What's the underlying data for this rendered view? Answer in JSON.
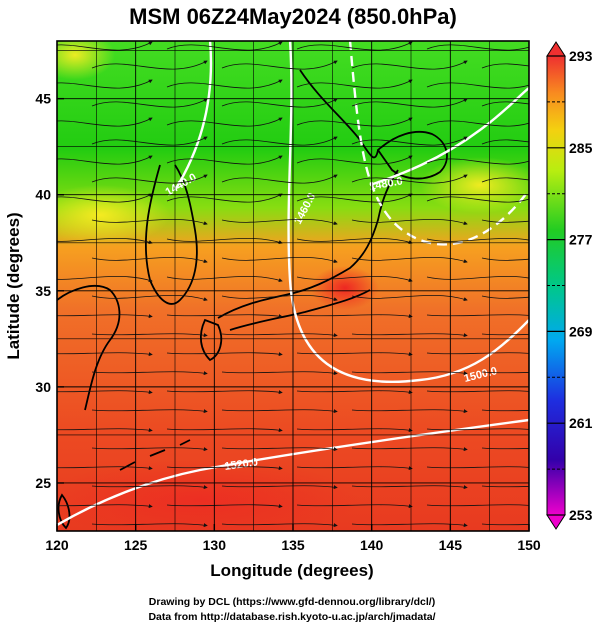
{
  "title": "MSM 06Z24May2024 (850.0hPa)",
  "x_axis": {
    "label": "Longitude (degrees)",
    "range": [
      120,
      150
    ],
    "ticks": [
      "120",
      "125",
      "130",
      "135",
      "140",
      "145",
      "150"
    ]
  },
  "y_axis": {
    "label": "Latitude  (degrees)",
    "range": [
      22.5,
      48
    ],
    "ticks": [
      "25",
      "30",
      "35",
      "40",
      "45"
    ]
  },
  "colorbar": {
    "range": [
      253,
      293
    ],
    "ticks": [
      "253",
      "261",
      "269",
      "277",
      "285",
      "293"
    ],
    "dashed_levels": [
      257,
      265,
      273,
      281,
      289
    ]
  },
  "contour_labels": [
    "1520.0",
    "1500.0",
    "1480.0",
    "1460.0",
    "1440.0"
  ],
  "credits": {
    "line1": "Drawing by DCL (https://www.gfd-dennou.org/library/dcl/)",
    "line2": "Data from http://database.rish.kyoto-u.ac.jp/arch/jmadata/"
  },
  "colors": {
    "cold": "#00cc33",
    "warm": "#e83a20",
    "contour": "#ffffff",
    "coast": "#000000"
  }
}
